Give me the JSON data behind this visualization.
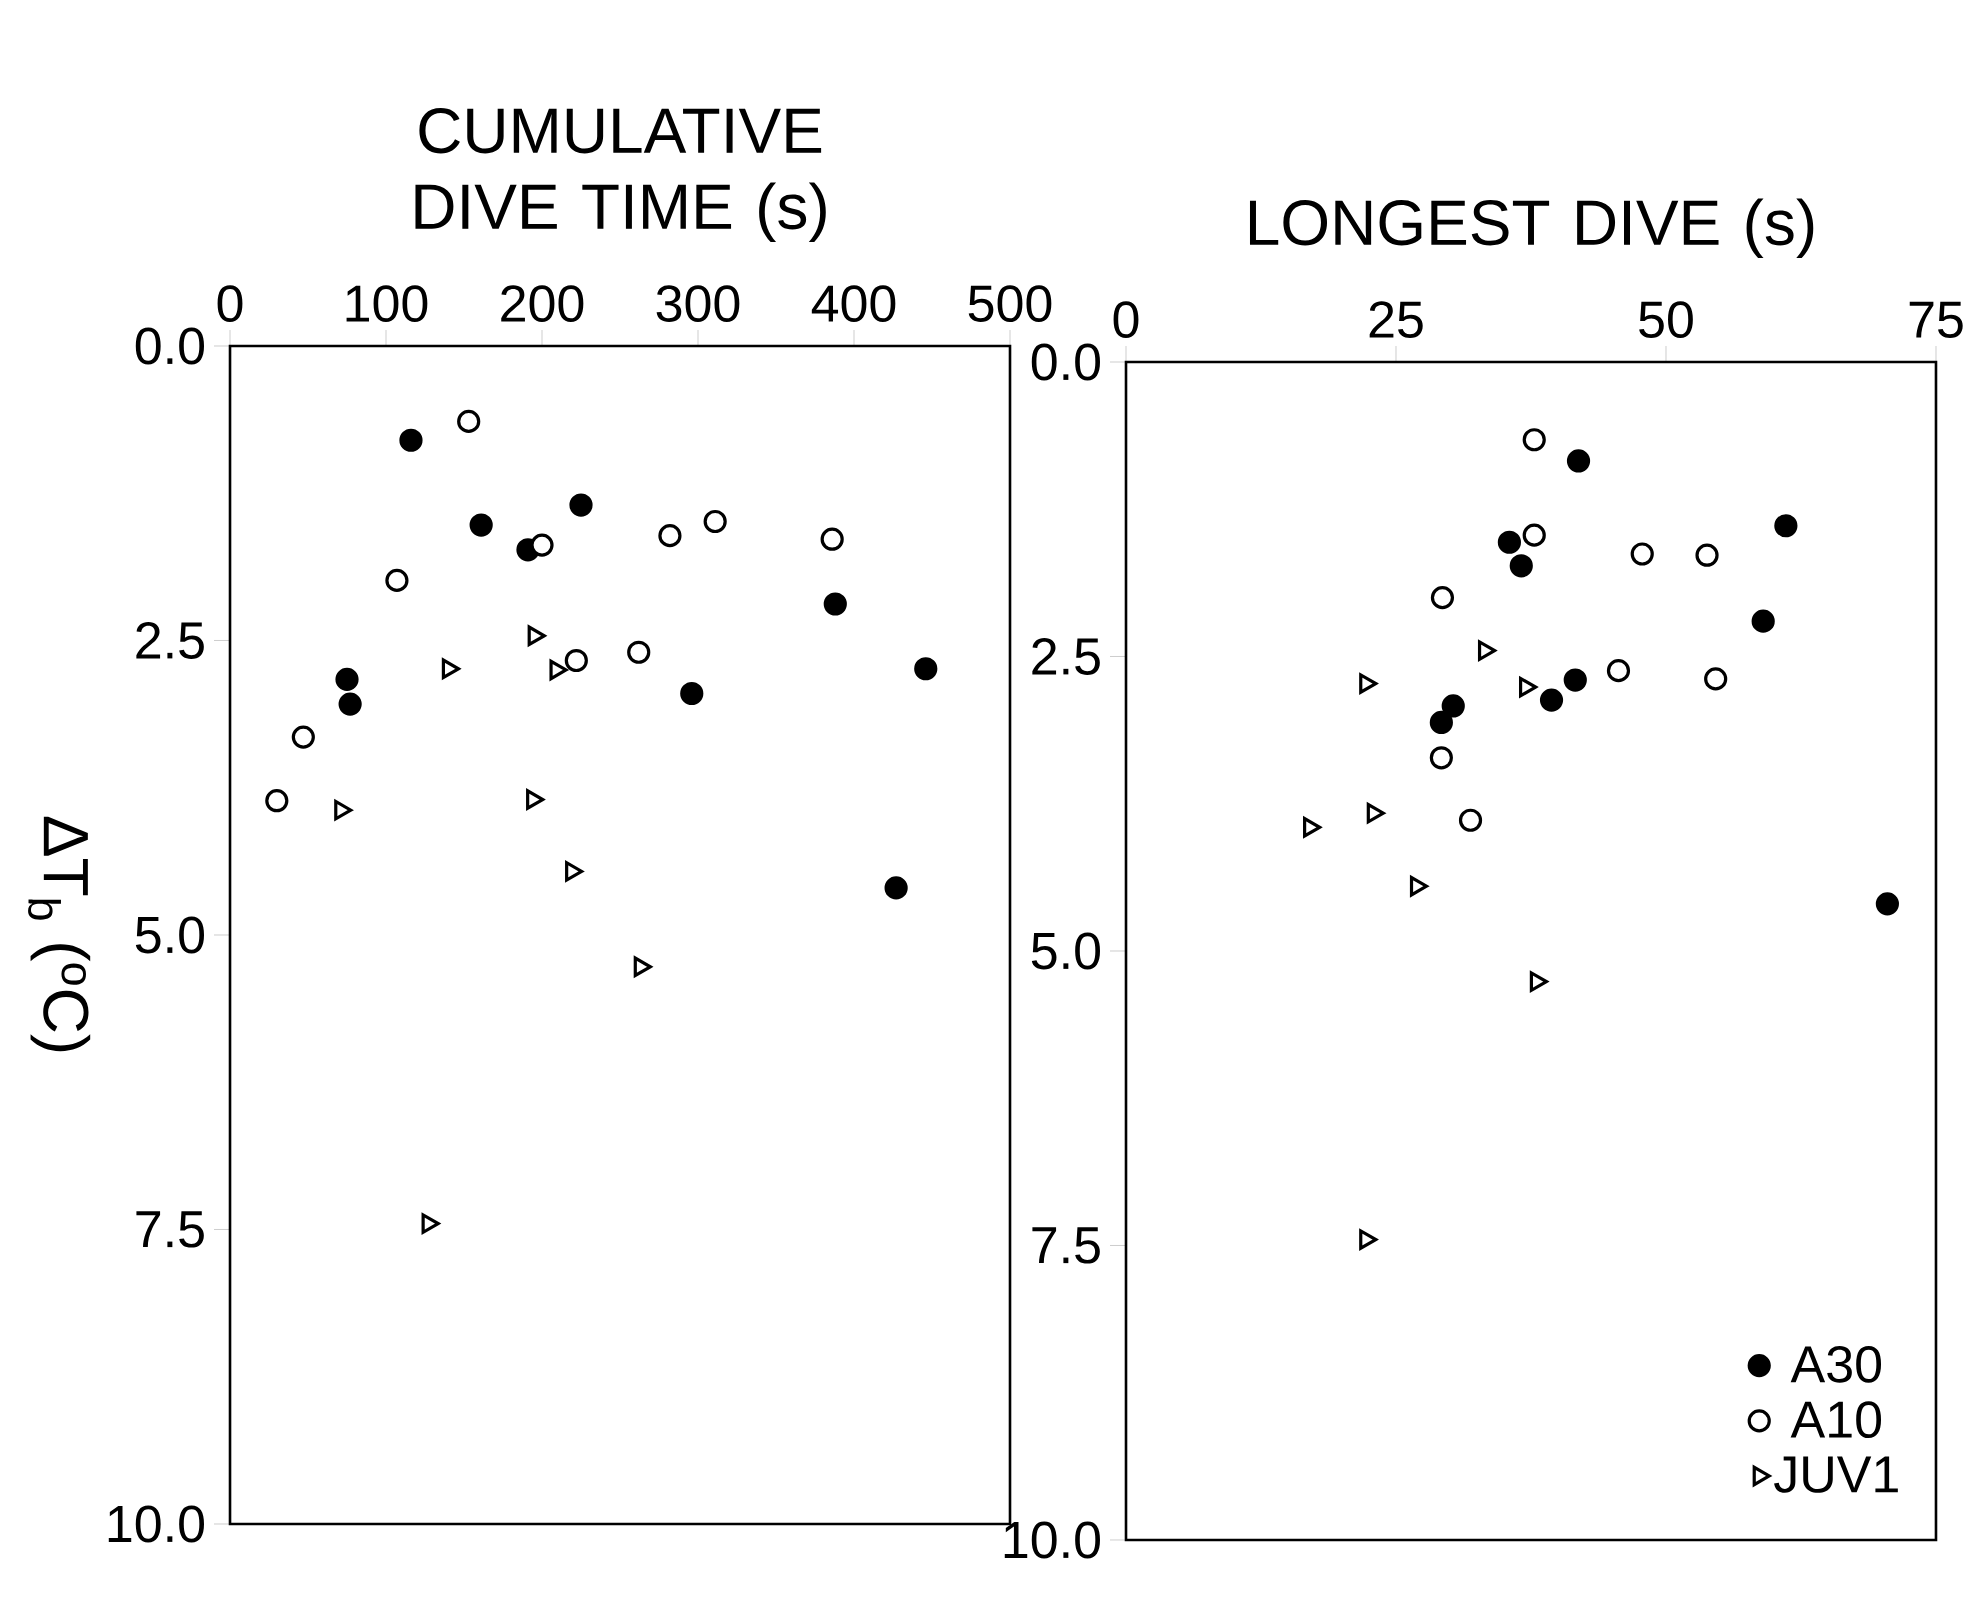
{
  "chart_data": [
    {
      "type": "scatter",
      "xlabel": "CUMULATIVE DIVE TIME (s)",
      "ylabel": "ΔT$_{b}$ ($^{o}$C)",
      "xlim": [
        0,
        500
      ],
      "ylim": [
        10,
        0
      ],
      "xticks": [
        0,
        100,
        200,
        300,
        400,
        500
      ],
      "yticks": [
        {
          "value": 0,
          "label": "0.0"
        },
        {
          "value": 2.5,
          "label": "2.5"
        },
        {
          "value": 5,
          "label": "5.0"
        },
        {
          "value": 7.5,
          "label": "7.5"
        },
        {
          "value": 10,
          "label": "10.0"
        }
      ],
      "grid": false,
      "legend": false,
      "series": [
        {
          "color": "#000000",
          "marker": "circle",
          "x": [
            116,
            225,
            161,
            191,
            388,
            446,
            75,
            77,
            296,
            427
          ],
          "values": [
            0.8,
            1.35,
            1.52,
            1.73,
            2.19,
            2.74,
            2.83,
            3.04,
            2.95,
            4.6
          ]
        },
        {
          "color": "#ffffff",
          "marker": "circle",
          "x": [
            153,
            311,
            282,
            200,
            386,
            107,
            222,
            262,
            47,
            30
          ],
          "values": [
            0.64,
            1.49,
            1.61,
            1.69,
            1.64,
            1.99,
            2.67,
            2.6,
            3.32,
            3.86
          ]
        },
        {
          "color": "#ffffff",
          "marker": "triangle",
          "x": [
            195,
            140,
            209,
            194,
            71,
            219,
            263,
            127
          ],
          "values": [
            2.46,
            2.74,
            2.75,
            3.85,
            3.94,
            4.46,
            5.27,
            7.45
          ]
        }
      ]
    },
    {
      "type": "scatter",
      "xlabel": "LONGEST DIVE (s)",
      "xlim": [
        0,
        75
      ],
      "ylim": [
        10,
        0
      ],
      "xticks": [
        0,
        25,
        50,
        75
      ],
      "yticks": [
        {
          "value": 0,
          "label": "0.0"
        },
        {
          "value": 2.5,
          "label": "2.5"
        },
        {
          "value": 5,
          "label": "5.0"
        },
        {
          "value": 7.5,
          "label": "7.5"
        },
        {
          "value": 10,
          "label": "10.0"
        }
      ],
      "grid": false,
      "legend": "bottom right",
      "series": [
        {
          "name": "A30",
          "color": "#000000",
          "marker": "circle",
          "x": [
            41.9,
            61.1,
            35.5,
            36.6,
            59.0,
            41.6,
            39.4,
            30.3,
            29.2,
            70.5
          ],
          "values": [
            0.84,
            1.39,
            1.53,
            1.73,
            2.2,
            2.7,
            2.87,
            2.92,
            3.06,
            4.6
          ]
        },
        {
          "name": "A10",
          "color": "#ffffff",
          "marker": "circle",
          "x": [
            37.8,
            37.8,
            47.8,
            53.8,
            29.3,
            45.6,
            54.6,
            29.2,
            31.9
          ],
          "values": [
            0.66,
            1.47,
            1.63,
            1.64,
            2.0,
            2.62,
            2.69,
            3.36,
            3.89
          ]
        },
        {
          "name": "JUV1",
          "color": "#ffffff",
          "marker": "triangle",
          "x": [
            33.2,
            22.2,
            37.0,
            22.9,
            17.0,
            26.9,
            38.0,
            22.2
          ],
          "values": [
            2.45,
            2.73,
            2.76,
            3.83,
            3.95,
            4.45,
            5.26,
            7.45
          ]
        }
      ]
    }
  ]
}
